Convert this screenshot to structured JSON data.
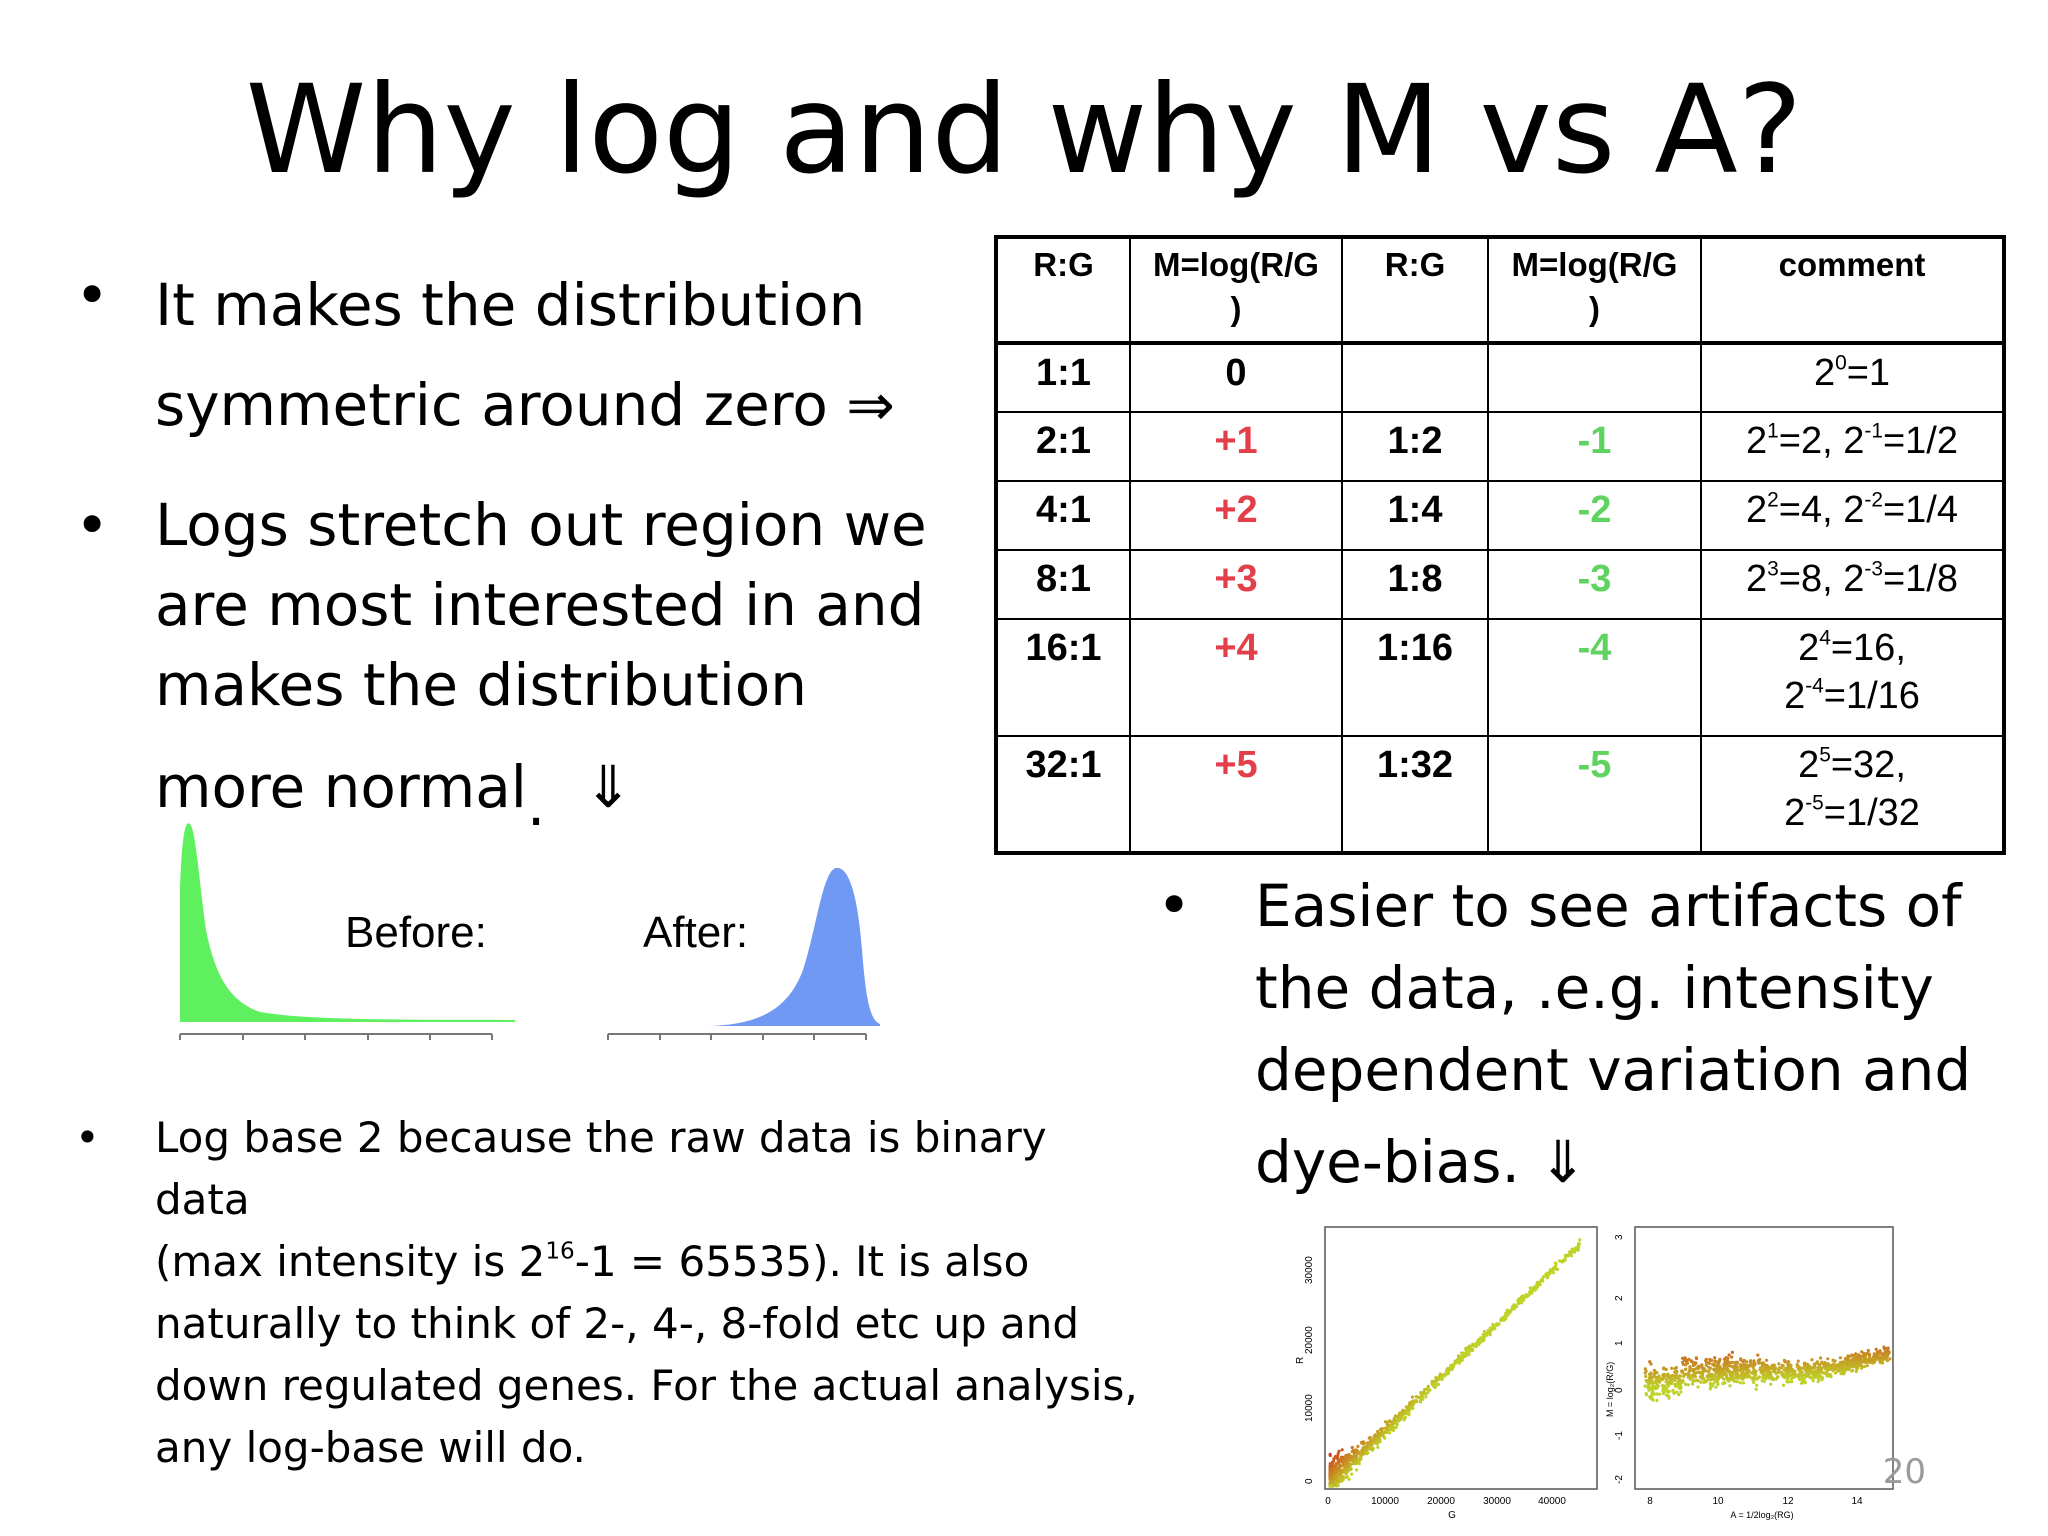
{
  "slide": {
    "title": "Why log and why M vs A?",
    "page_number": "20"
  },
  "bullets": {
    "marker": "•",
    "b1_line1": "It makes the distribution",
    "b1_line2": "symmetric around zero",
    "b1_arrow": "⇒",
    "b2_line1": "Logs stretch out region we",
    "b2_line2": "are most interested in and",
    "b2_line3": "makes the distribution",
    "b2_line4": "more normal",
    "b2_punct": ".",
    "b2_arrow": "⇓",
    "b3_line1": "Easier to see artifacts of",
    "b3_line2": "the data, .e.g. intensity",
    "b3_line3": "dependent variation and",
    "b3_line4": "dye-bias.",
    "b3_arrow": "⇓",
    "b4_line1": "Log base 2 because the raw data is binary data",
    "b4_line2_pre": "(max intensity is 2",
    "b4_line2_sup": "16",
    "b4_line2_post": "-1 = 65535). It is also",
    "b4_line3": "naturally to think of 2-, 4-, 8-fold etc up and",
    "b4_line4": "down regulated genes. For the actual analysis,",
    "b4_line5": "any log-base will do."
  },
  "table": {
    "headers": [
      "R:G",
      "M=log(R/G\n)",
      "R:G",
      "M=log(R/G\n)",
      "comment"
    ],
    "rows": [
      {
        "rg": "1:1",
        "m": "0",
        "rg2": "",
        "m2": "",
        "c1b": "2",
        "c1e": "0",
        "c1r": "=1",
        "c2b": "",
        "c2e": "",
        "c2r": ""
      },
      {
        "rg": "2:1",
        "m": "+1",
        "rg2": "1:2",
        "m2": "-1",
        "c1b": "2",
        "c1e": "1",
        "c1r": "=2, ",
        "c2b": "2",
        "c2e": "-1",
        "c2r": "=1/2"
      },
      {
        "rg": "4:1",
        "m": "+2",
        "rg2": "1:4",
        "m2": "-2",
        "c1b": "2",
        "c1e": "2",
        "c1r": "=4, ",
        "c2b": "2",
        "c2e": "-2",
        "c2r": "=1/4"
      },
      {
        "rg": "8:1",
        "m": "+3",
        "rg2": "1:8",
        "m2": "-3",
        "c1b": "2",
        "c1e": "3",
        "c1r": "=8, ",
        "c2b": "2",
        "c2e": "-3",
        "c2r": "=1/8"
      },
      {
        "rg": "16:1",
        "m": "+4",
        "rg2": "1:16",
        "m2": "-4",
        "c1b": "2",
        "c1e": "4",
        "c1r": "=16,",
        "c2b": "2",
        "c2e": "-4",
        "c2r": "=1/16"
      },
      {
        "rg": "32:1",
        "m": "+5",
        "rg2": "1:32",
        "m2": "-5",
        "c1b": "2",
        "c1e": "5",
        "c1r": "=32,",
        "c2b": "2",
        "c2e": "-5",
        "c2r": "=1/32"
      }
    ],
    "colors": {
      "positive": "#e23f4a",
      "negative": "#5fd35f"
    }
  },
  "histograms": {
    "before_label": "Before:",
    "after_label": "After:",
    "before_color": "#5ef05e",
    "after_color": "#6f99f2"
  },
  "scatter_plots": {
    "left": {
      "xlabel": "G",
      "ylabel": "R",
      "xticks": [
        "0",
        "10000",
        "20000",
        "30000",
        "40000"
      ],
      "yticks": [
        "0",
        "10000",
        "20000",
        "30000"
      ]
    },
    "right": {
      "xlabel": "A = 1/2log₂(RG)",
      "ylabel": "M = log₂(R/G)",
      "xticks": [
        "8",
        "10",
        "12",
        "14"
      ],
      "yticks": [
        "-2",
        "-1",
        "0",
        "1",
        "2",
        "3"
      ]
    }
  }
}
